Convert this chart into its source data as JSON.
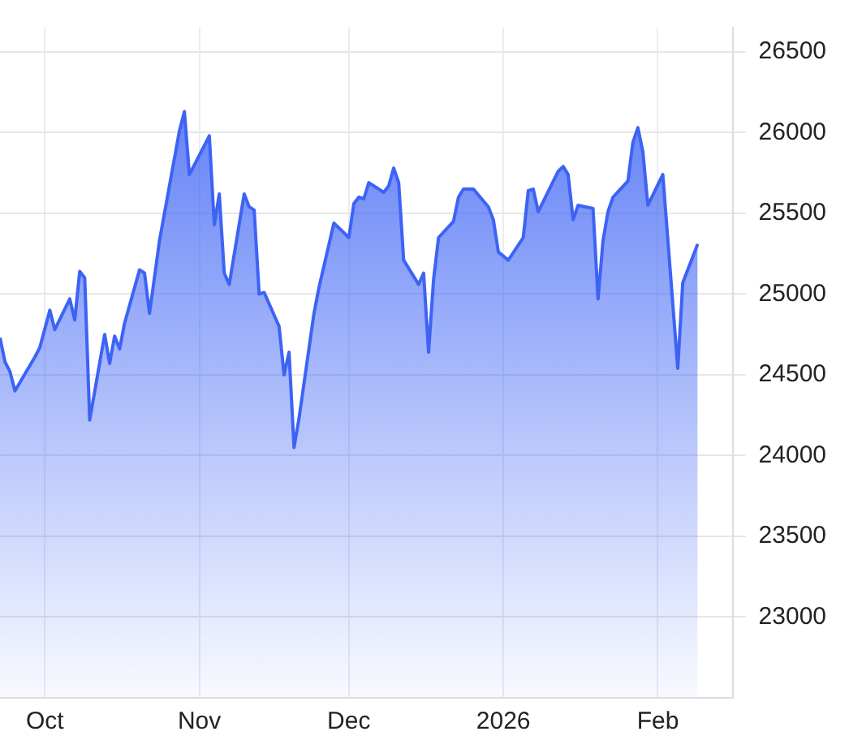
{
  "chart_data": {
    "type": "area",
    "x": [
      "2025-09-22",
      "2025-09-23",
      "2025-09-24",
      "2025-09-25",
      "2025-09-29",
      "2025-09-30",
      "2025-10-02",
      "2025-10-03",
      "2025-10-06",
      "2025-10-07",
      "2025-10-08",
      "2025-10-09",
      "2025-10-10",
      "2025-10-13",
      "2025-10-14",
      "2025-10-15",
      "2025-10-16",
      "2025-10-17",
      "2025-10-20",
      "2025-10-21",
      "2025-10-22",
      "2025-10-24",
      "2025-10-27",
      "2025-10-28",
      "2025-10-29",
      "2025-10-30",
      "2025-11-03",
      "2025-11-04",
      "2025-11-05",
      "2025-11-06",
      "2025-11-07",
      "2025-11-10",
      "2025-11-11",
      "2025-11-12",
      "2025-11-13",
      "2025-11-14",
      "2025-11-17",
      "2025-11-18",
      "2025-11-19",
      "2025-11-20",
      "2025-11-21",
      "2025-11-24",
      "2025-11-25",
      "2025-11-28",
      "2025-12-01",
      "2025-12-02",
      "2025-12-03",
      "2025-12-04",
      "2025-12-05",
      "2025-12-08",
      "2025-12-09",
      "2025-12-10",
      "2025-12-11",
      "2025-12-12",
      "2025-12-15",
      "2025-12-16",
      "2025-12-17",
      "2025-12-18",
      "2025-12-19",
      "2025-12-22",
      "2025-12-23",
      "2025-12-24",
      "2025-12-26",
      "2025-12-29",
      "2025-12-30",
      "2025-12-31",
      "2026-01-02",
      "2026-01-05",
      "2026-01-06",
      "2026-01-07",
      "2026-01-08",
      "2026-01-12",
      "2026-01-13",
      "2026-01-14",
      "2026-01-15",
      "2026-01-16",
      "2026-01-19",
      "2026-01-20",
      "2026-01-21",
      "2026-01-22",
      "2026-01-23",
      "2026-01-26",
      "2026-01-27",
      "2026-01-28",
      "2026-01-29",
      "2026-01-30",
      "2026-02-02",
      "2026-02-05",
      "2026-02-06",
      "2026-02-09"
    ],
    "series": [
      {
        "color": "#3d63f5",
        "values": [
          24730,
          24580,
          24520,
          24400,
          24610,
          24670,
          24900,
          24780,
          24970,
          24840,
          25140,
          25100,
          24220,
          24750,
          24570,
          24740,
          24660,
          24820,
          25150,
          25130,
          24880,
          25330,
          25840,
          26010,
          26130,
          25740,
          25980,
          25430,
          25620,
          25130,
          25060,
          25620,
          25540,
          25520,
          25000,
          25010,
          24800,
          24500,
          24640,
          24050,
          24230,
          24880,
          25040,
          25440,
          25350,
          25560,
          25600,
          25590,
          25690,
          25630,
          25670,
          25780,
          25690,
          25210,
          25060,
          25130,
          24640,
          25090,
          25350,
          25450,
          25600,
          25650,
          25650,
          25540,
          25460,
          25260,
          25210,
          25350,
          25640,
          25650,
          25510,
          25760,
          25790,
          25740,
          25460,
          25550,
          25530,
          24970,
          25330,
          25510,
          25600,
          25700,
          25940,
          26030,
          25880,
          25550,
          25740,
          24540,
          25070,
          25310
        ]
      }
    ],
    "xlim": [
      "2025-09-22",
      "2026-02-16"
    ],
    "xticks": [
      {
        "value": "2025-10-01",
        "label": "Oct"
      },
      {
        "value": "2025-11-01",
        "label": "Nov"
      },
      {
        "value": "2025-12-01",
        "label": "Dec"
      },
      {
        "value": "2026-01-01",
        "label": "2026"
      },
      {
        "value": "2026-02-01",
        "label": "Feb"
      }
    ],
    "ylim": [
      22500,
      26650
    ],
    "yticks": [
      23000,
      23500,
      24000,
      24500,
      25000,
      25500,
      26000,
      26500
    ],
    "grid": true,
    "legend": false,
    "marker": "none",
    "line_style": "solid"
  }
}
